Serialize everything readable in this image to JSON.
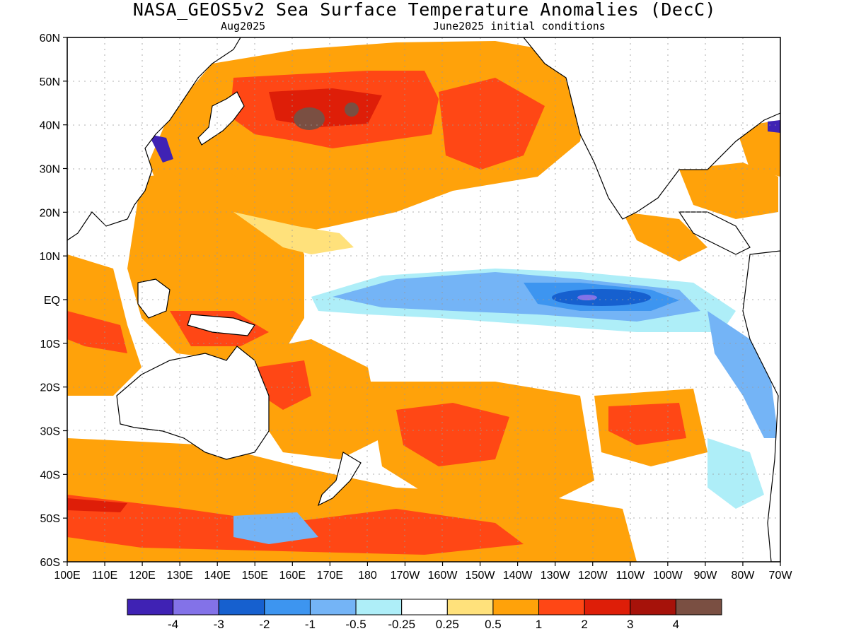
{
  "title": "NASA_GEOS5v2 Sea Surface Temperature Anomalies (DecC)",
  "subtitle_left": "Aug2025",
  "subtitle_right": "June2025 initial conditions",
  "lat_labels": [
    "60N",
    "50N",
    "40N",
    "30N",
    "20N",
    "10N",
    "EQ",
    "10S",
    "20S",
    "30S",
    "40S",
    "50S",
    "60S"
  ],
  "lon_labels": [
    "100E",
    "110E",
    "120E",
    "130E",
    "140E",
    "150E",
    "160E",
    "170E",
    "180",
    "170W",
    "160W",
    "150W",
    "140W",
    "130W",
    "120W",
    "110W",
    "100W",
    "90W",
    "80W",
    "70W"
  ],
  "colorbar": {
    "colors": [
      "#3f22b4",
      "#8372e8",
      "#1660cf",
      "#3d95f0",
      "#74b4f6",
      "#aeeef8",
      "#ffffff",
      "#ffe17b",
      "#ffa20a",
      "#ff4715",
      "#de1e08",
      "#a6120a",
      "#7a4f42"
    ],
    "labels": [
      "-4",
      "-3",
      "-2",
      "-1",
      "-0.5",
      "-0.25",
      "0.25",
      "0.5",
      "1",
      "2",
      "3",
      "4"
    ]
  }
}
